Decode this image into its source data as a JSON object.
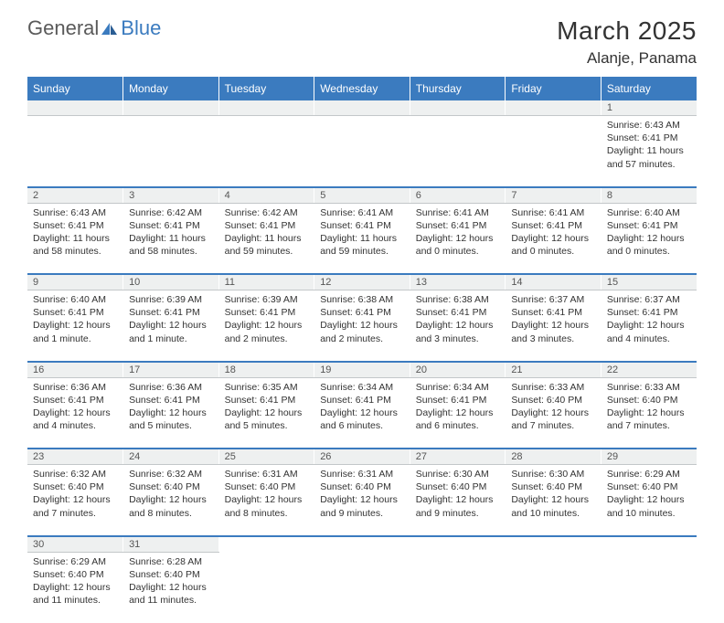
{
  "logo": {
    "part1": "General",
    "part2": "Blue"
  },
  "title": "March 2025",
  "location": "Alanje, Panama",
  "colors": {
    "header_bg": "#3b7bbf",
    "header_text": "#ffffff",
    "daynum_bg": "#eef0f0",
    "divider": "#3b7bbf",
    "text": "#333333"
  },
  "daynames": [
    "Sunday",
    "Monday",
    "Tuesday",
    "Wednesday",
    "Thursday",
    "Friday",
    "Saturday"
  ],
  "weeks": [
    [
      null,
      null,
      null,
      null,
      null,
      null,
      {
        "n": "1",
        "sr": "Sunrise: 6:43 AM",
        "ss": "Sunset: 6:41 PM",
        "dl": "Daylight: 11 hours and 57 minutes."
      }
    ],
    [
      {
        "n": "2",
        "sr": "Sunrise: 6:43 AM",
        "ss": "Sunset: 6:41 PM",
        "dl": "Daylight: 11 hours and 58 minutes."
      },
      {
        "n": "3",
        "sr": "Sunrise: 6:42 AM",
        "ss": "Sunset: 6:41 PM",
        "dl": "Daylight: 11 hours and 58 minutes."
      },
      {
        "n": "4",
        "sr": "Sunrise: 6:42 AM",
        "ss": "Sunset: 6:41 PM",
        "dl": "Daylight: 11 hours and 59 minutes."
      },
      {
        "n": "5",
        "sr": "Sunrise: 6:41 AM",
        "ss": "Sunset: 6:41 PM",
        "dl": "Daylight: 11 hours and 59 minutes."
      },
      {
        "n": "6",
        "sr": "Sunrise: 6:41 AM",
        "ss": "Sunset: 6:41 PM",
        "dl": "Daylight: 12 hours and 0 minutes."
      },
      {
        "n": "7",
        "sr": "Sunrise: 6:41 AM",
        "ss": "Sunset: 6:41 PM",
        "dl": "Daylight: 12 hours and 0 minutes."
      },
      {
        "n": "8",
        "sr": "Sunrise: 6:40 AM",
        "ss": "Sunset: 6:41 PM",
        "dl": "Daylight: 12 hours and 0 minutes."
      }
    ],
    [
      {
        "n": "9",
        "sr": "Sunrise: 6:40 AM",
        "ss": "Sunset: 6:41 PM",
        "dl": "Daylight: 12 hours and 1 minute."
      },
      {
        "n": "10",
        "sr": "Sunrise: 6:39 AM",
        "ss": "Sunset: 6:41 PM",
        "dl": "Daylight: 12 hours and 1 minute."
      },
      {
        "n": "11",
        "sr": "Sunrise: 6:39 AM",
        "ss": "Sunset: 6:41 PM",
        "dl": "Daylight: 12 hours and 2 minutes."
      },
      {
        "n": "12",
        "sr": "Sunrise: 6:38 AM",
        "ss": "Sunset: 6:41 PM",
        "dl": "Daylight: 12 hours and 2 minutes."
      },
      {
        "n": "13",
        "sr": "Sunrise: 6:38 AM",
        "ss": "Sunset: 6:41 PM",
        "dl": "Daylight: 12 hours and 3 minutes."
      },
      {
        "n": "14",
        "sr": "Sunrise: 6:37 AM",
        "ss": "Sunset: 6:41 PM",
        "dl": "Daylight: 12 hours and 3 minutes."
      },
      {
        "n": "15",
        "sr": "Sunrise: 6:37 AM",
        "ss": "Sunset: 6:41 PM",
        "dl": "Daylight: 12 hours and 4 minutes."
      }
    ],
    [
      {
        "n": "16",
        "sr": "Sunrise: 6:36 AM",
        "ss": "Sunset: 6:41 PM",
        "dl": "Daylight: 12 hours and 4 minutes."
      },
      {
        "n": "17",
        "sr": "Sunrise: 6:36 AM",
        "ss": "Sunset: 6:41 PM",
        "dl": "Daylight: 12 hours and 5 minutes."
      },
      {
        "n": "18",
        "sr": "Sunrise: 6:35 AM",
        "ss": "Sunset: 6:41 PM",
        "dl": "Daylight: 12 hours and 5 minutes."
      },
      {
        "n": "19",
        "sr": "Sunrise: 6:34 AM",
        "ss": "Sunset: 6:41 PM",
        "dl": "Daylight: 12 hours and 6 minutes."
      },
      {
        "n": "20",
        "sr": "Sunrise: 6:34 AM",
        "ss": "Sunset: 6:41 PM",
        "dl": "Daylight: 12 hours and 6 minutes."
      },
      {
        "n": "21",
        "sr": "Sunrise: 6:33 AM",
        "ss": "Sunset: 6:40 PM",
        "dl": "Daylight: 12 hours and 7 minutes."
      },
      {
        "n": "22",
        "sr": "Sunrise: 6:33 AM",
        "ss": "Sunset: 6:40 PM",
        "dl": "Daylight: 12 hours and 7 minutes."
      }
    ],
    [
      {
        "n": "23",
        "sr": "Sunrise: 6:32 AM",
        "ss": "Sunset: 6:40 PM",
        "dl": "Daylight: 12 hours and 7 minutes."
      },
      {
        "n": "24",
        "sr": "Sunrise: 6:32 AM",
        "ss": "Sunset: 6:40 PM",
        "dl": "Daylight: 12 hours and 8 minutes."
      },
      {
        "n": "25",
        "sr": "Sunrise: 6:31 AM",
        "ss": "Sunset: 6:40 PM",
        "dl": "Daylight: 12 hours and 8 minutes."
      },
      {
        "n": "26",
        "sr": "Sunrise: 6:31 AM",
        "ss": "Sunset: 6:40 PM",
        "dl": "Daylight: 12 hours and 9 minutes."
      },
      {
        "n": "27",
        "sr": "Sunrise: 6:30 AM",
        "ss": "Sunset: 6:40 PM",
        "dl": "Daylight: 12 hours and 9 minutes."
      },
      {
        "n": "28",
        "sr": "Sunrise: 6:30 AM",
        "ss": "Sunset: 6:40 PM",
        "dl": "Daylight: 12 hours and 10 minutes."
      },
      {
        "n": "29",
        "sr": "Sunrise: 6:29 AM",
        "ss": "Sunset: 6:40 PM",
        "dl": "Daylight: 12 hours and 10 minutes."
      }
    ],
    [
      {
        "n": "30",
        "sr": "Sunrise: 6:29 AM",
        "ss": "Sunset: 6:40 PM",
        "dl": "Daylight: 12 hours and 11 minutes."
      },
      {
        "n": "31",
        "sr": "Sunrise: 6:28 AM",
        "ss": "Sunset: 6:40 PM",
        "dl": "Daylight: 12 hours and 11 minutes."
      },
      null,
      null,
      null,
      null,
      null
    ]
  ]
}
